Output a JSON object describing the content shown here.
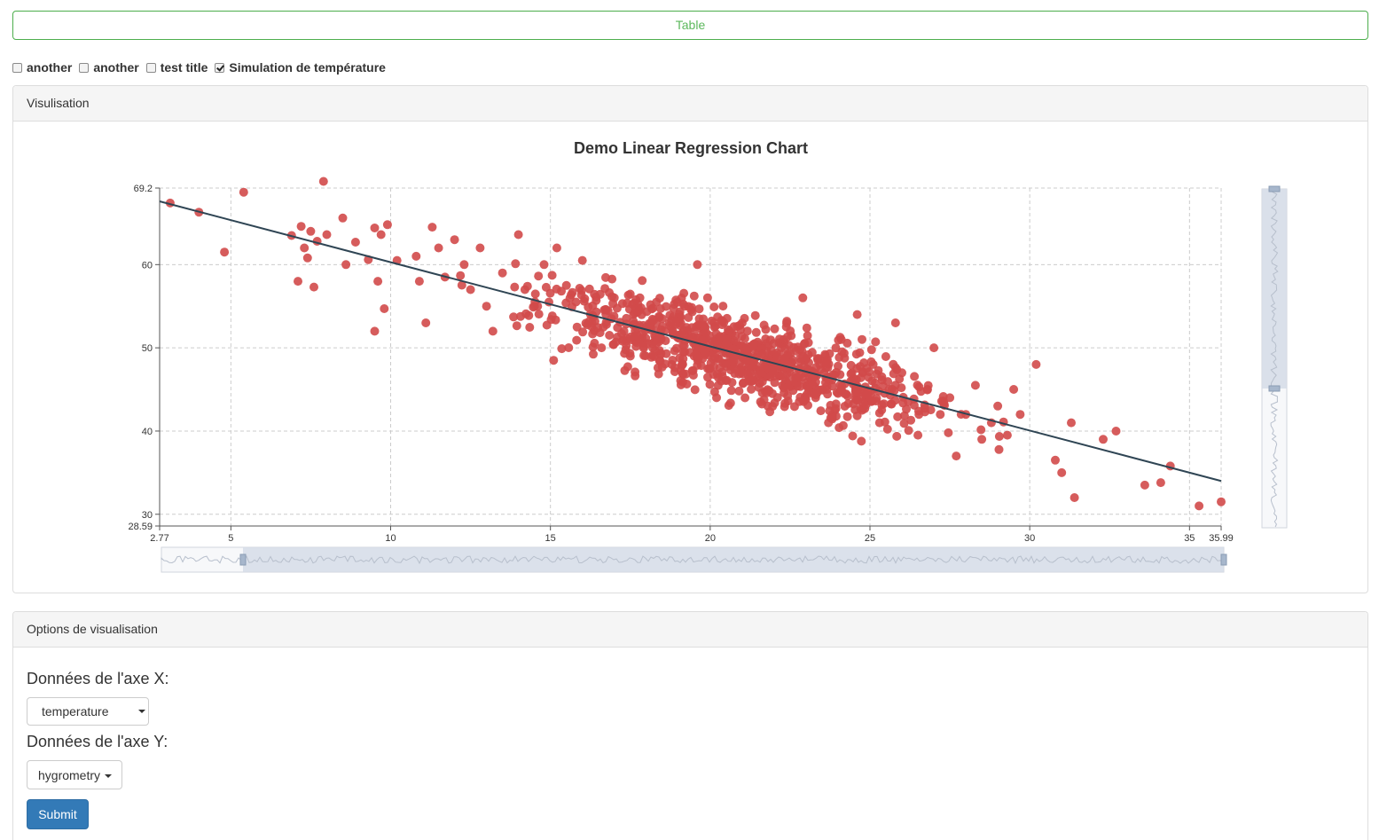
{
  "top_button": {
    "label": "Table"
  },
  "checkboxes": [
    {
      "label": "another",
      "checked": false
    },
    {
      "label": "another",
      "checked": false
    },
    {
      "label": "test title",
      "checked": false
    },
    {
      "label": "Simulation de température",
      "checked": true
    }
  ],
  "visualisation_panel": {
    "heading": "Visulisation"
  },
  "options_panel": {
    "heading": "Options de visualisation",
    "x_axis_label": "Données de l'axe X:",
    "x_axis_value": "temperature",
    "y_axis_label": "Données de l'axe Y:",
    "y_axis_value": "hygrometry",
    "submit_label": "Submit"
  },
  "colors": {
    "points": "#d14a4a",
    "regression_line": "#2f4554",
    "button_green": "#5cb85c",
    "submit_blue": "#337ab7",
    "datazoom_fill": "#d6dde8"
  },
  "chart_data": {
    "type": "scatter",
    "title": "Demo Linear Regression Chart",
    "xlabel": "",
    "ylabel": "",
    "xlim": [
      2.77,
      35.99
    ],
    "ylim": [
      28.59,
      69.2
    ],
    "x_ticks": [
      2.77,
      5,
      10,
      15,
      20,
      25,
      30,
      35,
      35.99
    ],
    "y_ticks": [
      28.59,
      30,
      40,
      50,
      60,
      69.2
    ],
    "grid": true,
    "grid_style": "dashed",
    "point_count": 1000,
    "regression_line": {
      "x1": 2.77,
      "y1": 67.6,
      "x2": 35.99,
      "y2": 34.0
    },
    "points": [
      [
        3.1,
        67.4
      ],
      [
        4.0,
        66.3
      ],
      [
        4.8,
        61.5
      ],
      [
        5.4,
        68.7
      ],
      [
        7.9,
        70.0
      ],
      [
        6.9,
        63.5
      ],
      [
        7.2,
        64.6
      ],
      [
        7.5,
        64.0
      ],
      [
        7.3,
        62.0
      ],
      [
        7.4,
        60.8
      ],
      [
        7.1,
        58.0
      ],
      [
        7.6,
        57.3
      ],
      [
        7.7,
        62.8
      ],
      [
        8.0,
        63.6
      ],
      [
        8.5,
        65.6
      ],
      [
        8.6,
        60.0
      ],
      [
        8.9,
        62.7
      ],
      [
        9.3,
        60.6
      ],
      [
        9.5,
        64.4
      ],
      [
        9.7,
        63.6
      ],
      [
        9.9,
        64.8
      ],
      [
        9.6,
        58.0
      ],
      [
        9.8,
        54.7
      ],
      [
        9.5,
        52.0
      ],
      [
        10.2,
        60.5
      ],
      [
        10.8,
        61.0
      ],
      [
        10.9,
        58.0
      ],
      [
        11.3,
        64.5
      ],
      [
        11.5,
        62.0
      ],
      [
        11.7,
        58.5
      ],
      [
        11.1,
        53.0
      ],
      [
        12.0,
        63.0
      ],
      [
        12.3,
        60.0
      ],
      [
        12.5,
        57.0
      ],
      [
        12.8,
        62.0
      ],
      [
        13.0,
        55.0
      ],
      [
        13.2,
        52.0
      ],
      [
        13.5,
        59.0
      ],
      [
        14.0,
        63.6
      ],
      [
        14.2,
        57.0
      ],
      [
        14.5,
        55.0
      ],
      [
        14.8,
        60.0
      ],
      [
        15.2,
        62.0
      ],
      [
        15.5,
        57.5
      ],
      [
        15.8,
        55.5
      ],
      [
        16.0,
        60.5
      ],
      [
        16.3,
        53.0
      ],
      [
        16.6,
        50.0
      ],
      [
        15.1,
        48.5
      ],
      [
        17.0,
        56.0
      ],
      [
        17.3,
        52.0
      ],
      [
        17.5,
        49.0
      ],
      [
        17.8,
        56.0
      ],
      [
        18.0,
        52.5
      ],
      [
        18.2,
        50.0
      ],
      [
        18.5,
        53.5
      ],
      [
        18.8,
        48.0
      ],
      [
        19.0,
        51.5
      ],
      [
        19.2,
        55.0
      ],
      [
        19.5,
        49.0
      ],
      [
        19.6,
        60.0
      ],
      [
        19.8,
        52.0
      ],
      [
        20.0,
        47.5
      ],
      [
        20.2,
        44.0
      ],
      [
        20.4,
        50.5
      ],
      [
        20.7,
        48.0
      ],
      [
        21.0,
        53.0
      ],
      [
        21.3,
        46.0
      ],
      [
        21.6,
        50.0
      ],
      [
        21.8,
        43.0
      ],
      [
        22.0,
        48.0
      ],
      [
        22.3,
        51.0
      ],
      [
        22.6,
        45.5
      ],
      [
        22.9,
        56.0
      ],
      [
        23.0,
        47.0
      ],
      [
        23.3,
        44.0
      ],
      [
        23.6,
        49.0
      ],
      [
        23.9,
        42.5
      ],
      [
        24.1,
        51.0
      ],
      [
        24.4,
        46.0
      ],
      [
        24.6,
        54.0
      ],
      [
        24.9,
        44.0
      ],
      [
        25.1,
        48.0
      ],
      [
        25.3,
        41.0
      ],
      [
        25.6,
        45.0
      ],
      [
        25.8,
        53.0
      ],
      [
        26.0,
        47.0
      ],
      [
        26.2,
        43.5
      ],
      [
        26.5,
        39.5
      ],
      [
        26.8,
        45.0
      ],
      [
        27.0,
        50.0
      ],
      [
        27.2,
        42.0
      ],
      [
        27.5,
        44.0
      ],
      [
        27.7,
        37.0
      ],
      [
        28.0,
        42.0
      ],
      [
        28.3,
        45.5
      ],
      [
        28.5,
        39.0
      ],
      [
        28.8,
        41.0
      ],
      [
        29.0,
        43.0
      ],
      [
        29.3,
        39.5
      ],
      [
        29.5,
        45.0
      ],
      [
        29.7,
        42.0
      ],
      [
        30.2,
        48.0
      ],
      [
        30.8,
        36.5
      ],
      [
        31.0,
        35.0
      ],
      [
        31.3,
        41.0
      ],
      [
        31.4,
        32.0
      ],
      [
        32.3,
        39.0
      ],
      [
        32.7,
        40.0
      ],
      [
        33.6,
        33.5
      ],
      [
        34.1,
        33.8
      ],
      [
        34.4,
        35.8
      ],
      [
        35.3,
        31.0
      ],
      [
        35.99,
        31.5
      ]
    ]
  }
}
